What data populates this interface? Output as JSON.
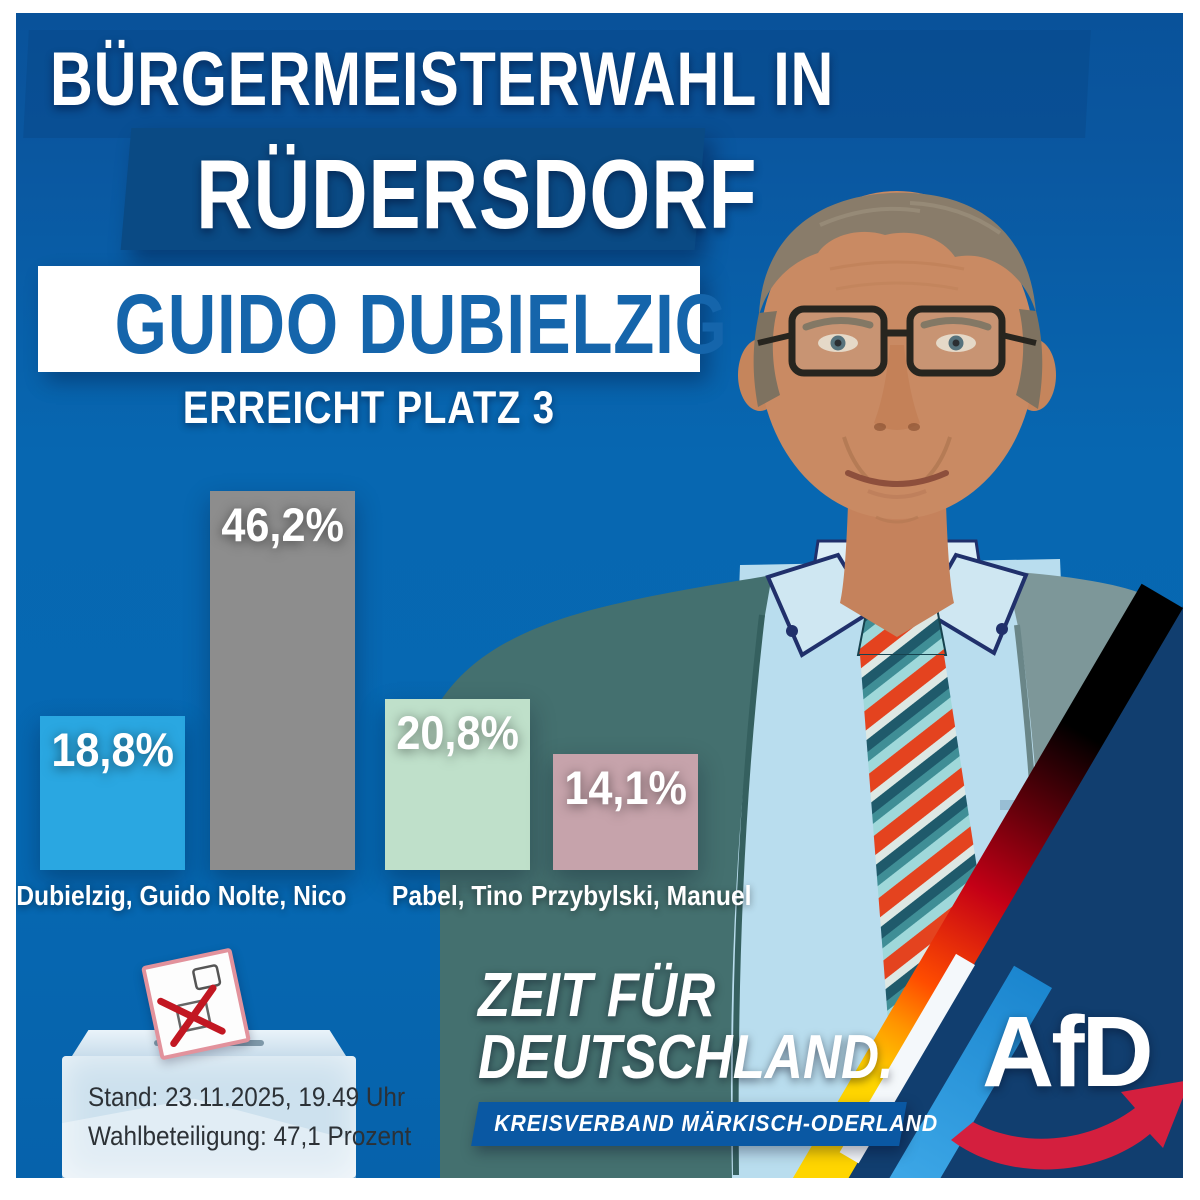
{
  "poster": {
    "title_line1": "BÜRGERMEISTERWAHL IN",
    "title_line2": "RÜDERSDORF",
    "candidate_name": "GUIDO DUBIELZIG",
    "result_line": "ERREICHT PLATZ 3"
  },
  "chart_data": {
    "type": "bar",
    "categories": [
      "Dubielzig, Guido",
      "Nolte, Nico",
      "Pabel, Tino",
      "Przybylski, Manuel"
    ],
    "values": [
      18.8,
      46.2,
      20.8,
      14.1
    ],
    "value_labels": [
      "18,8%",
      "46,2%",
      "20,8%",
      "14,1%"
    ],
    "bar_colors": [
      "#2aa7e1",
      "#8d8d8d",
      "#bfe0ca",
      "#c6a3ab"
    ],
    "title": "",
    "xlabel": "",
    "ylabel": "",
    "ylim": [
      0,
      50
    ],
    "grid": false,
    "legend": "none",
    "value_label_position": "inside-top"
  },
  "info_box": {
    "stand": "Stand: 23.11.2025, 19.49 Uhr",
    "turnout": "Wahlbeteiligung: 47,1 Prozent"
  },
  "branding": {
    "slogan_line1": "ZEIT FÜR",
    "slogan_line2": "DEUTSCHLAND.",
    "region_banner": "KREISVERBAND MÄRKISCH-ODERLAND",
    "logo_text": "AfD"
  },
  "colors": {
    "background_blue": "#0767b1",
    "headline_box_blue": "#0a4a84",
    "candidate_text_blue": "#1565ab",
    "navy_corner": "#113e6f",
    "afd_red": "#d41f3e",
    "flag_black": "#000000",
    "flag_red": "#c40016",
    "flag_gold": "#ffd500",
    "banner_blue": "#0a58a3"
  },
  "icons": [
    "ballot-box-icon",
    "ballot-paper-icon",
    "afd-swoosh-arrow-icon",
    "portrait-photo"
  ]
}
